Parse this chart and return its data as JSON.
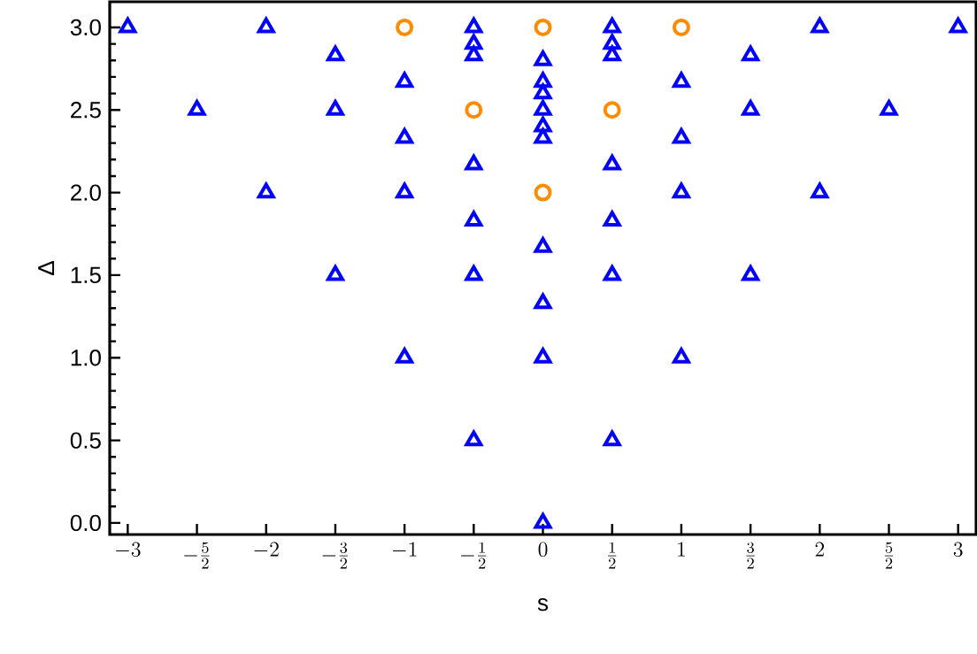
{
  "chart_data": {
    "type": "scatter",
    "xlabel": "s",
    "ylabel": "Δ",
    "series": [
      {
        "color": "#0000ff",
        "marker": "triangle",
        "x": [
          -3,
          -2.5,
          -2,
          -2,
          -1.5,
          -1.5,
          -1.5,
          -1,
          -1,
          -1,
          -1,
          -0.5,
          -0.5,
          -0.5,
          -0.5,
          -0.5,
          -0.5,
          -0.5,
          0,
          0,
          0,
          0,
          0,
          0,
          0,
          0,
          0,
          0,
          0.5,
          0.5,
          0.5,
          0.5,
          0.5,
          0.5,
          0.5,
          1,
          1,
          1,
          1,
          1.5,
          1.5,
          1.5,
          2,
          2,
          2.5,
          3
        ],
        "values": [
          3.0,
          2.5,
          3.0,
          2.0,
          2.83,
          2.5,
          1.5,
          2.67,
          2.33,
          2.0,
          1.0,
          3.0,
          2.9,
          2.83,
          2.17,
          1.83,
          1.5,
          0.5,
          2.8,
          2.67,
          2.6,
          2.5,
          2.4,
          2.33,
          1.67,
          1.33,
          1.0,
          0.0,
          3.0,
          2.9,
          2.83,
          2.17,
          1.83,
          1.5,
          0.5,
          2.67,
          2.33,
          2.0,
          1.0,
          2.83,
          2.5,
          1.5,
          3.0,
          2.0,
          2.5,
          3.0
        ]
      },
      {
        "color": "#ff8c00",
        "marker": "circle",
        "x": [
          -1,
          -0.5,
          0,
          0,
          0.5,
          1
        ],
        "values": [
          3.0,
          2.5,
          3.0,
          2.0,
          2.5,
          3.0
        ]
      }
    ],
    "xlim": [
      -3.13,
      3.13
    ],
    "ylim": [
      -0.07,
      3.155
    ],
    "xticks": [
      {
        "value": -3,
        "label": "-3"
      },
      {
        "value": -2.5,
        "label": "-\\frac{5}{2}"
      },
      {
        "value": -2,
        "label": "-2"
      },
      {
        "value": -1.5,
        "label": "-\\frac{3}{2}"
      },
      {
        "value": -1,
        "label": "-1"
      },
      {
        "value": -0.5,
        "label": "-\\frac{1}{2}"
      },
      {
        "value": 0,
        "label": "0"
      },
      {
        "value": 0.5,
        "label": "\\frac{1}{2}"
      },
      {
        "value": 1,
        "label": "1"
      },
      {
        "value": 1.5,
        "label": "\\frac{3}{2}"
      },
      {
        "value": 2,
        "label": "2"
      },
      {
        "value": 2.5,
        "label": "\\frac{5}{2}"
      },
      {
        "value": 3,
        "label": "3"
      }
    ],
    "yticks": [
      {
        "value": 0,
        "label": "0.0"
      },
      {
        "value": 0.5,
        "label": "0.5"
      },
      {
        "value": 1,
        "label": "1.0"
      },
      {
        "value": 1.5,
        "label": "1.5"
      },
      {
        "value": 2,
        "label": "2.0"
      },
      {
        "value": 2.5,
        "label": "2.5"
      },
      {
        "value": 3,
        "label": "3.0"
      }
    ],
    "grid": false
  }
}
